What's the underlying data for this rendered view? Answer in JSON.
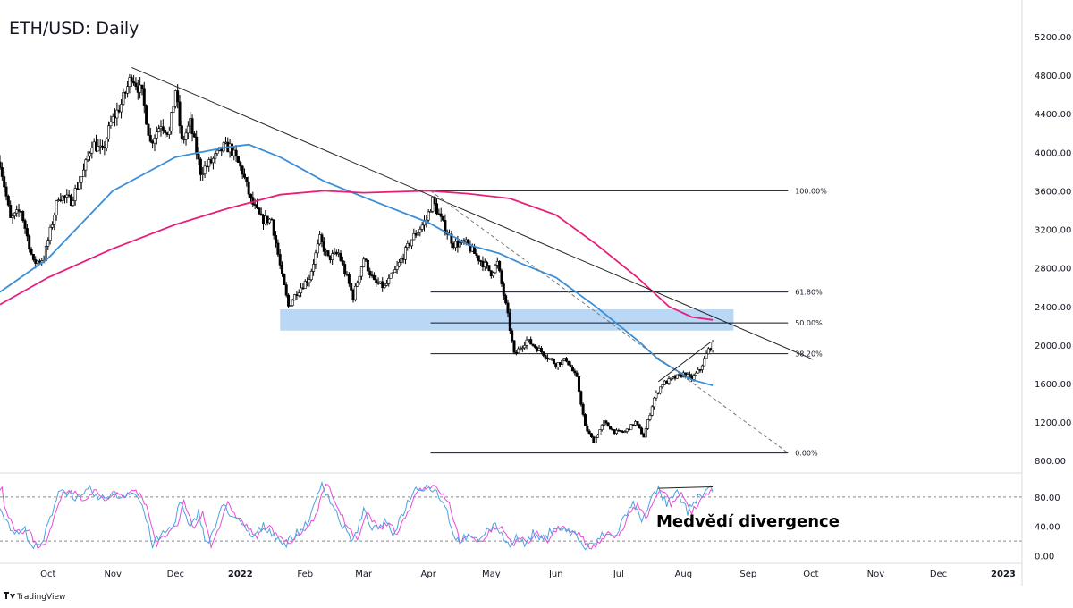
{
  "title": "ETH/USD: Daily",
  "branding": "TradingView",
  "colors": {
    "up": "#ffffff",
    "down": "#000000",
    "ma_fast": "#3a8fd8",
    "ma_slow": "#e91e7a",
    "zone": "#aed0f5",
    "rsi": "#4aa3e0",
    "rsi_signal": "#e84bd8"
  },
  "chart_data": [
    {
      "type": "candlestick",
      "title": "ETH/USD: Daily",
      "y_ticks": [
        "5200.00",
        "4800.00",
        "4400.00",
        "4000.00",
        "3600.00",
        "3200.00",
        "2800.00",
        "2400.00",
        "2000.00",
        "1600.00",
        "1200.00",
        "800.00"
      ],
      "ylim": [
        700,
        5450
      ],
      "x_ticks": [
        "Oct",
        "Nov",
        "Dec",
        "2022",
        "Feb",
        "Mar",
        "Apr",
        "May",
        "Jun",
        "Jul",
        "Aug",
        "Sep",
        "Oct",
        "Nov",
        "Dec",
        "2023"
      ],
      "x_range": [
        "2021-09-08",
        "2023-01-10"
      ],
      "close_path": [
        [
          "2021-09-08",
          3900
        ],
        [
          "2021-09-13",
          3300
        ],
        [
          "2021-09-18",
          3400
        ],
        [
          "2021-09-24",
          2850
        ],
        [
          "2021-09-29",
          2900
        ],
        [
          "2021-10-06",
          3550
        ],
        [
          "2021-10-12",
          3500
        ],
        [
          "2021-10-18",
          3800
        ],
        [
          "2021-10-22",
          4100
        ],
        [
          "2021-10-27",
          4000
        ],
        [
          "2021-10-31",
          4300
        ],
        [
          "2021-11-05",
          4500
        ],
        [
          "2021-11-10",
          4800
        ],
        [
          "2021-11-15",
          4600
        ],
        [
          "2021-11-19",
          4100
        ],
        [
          "2021-11-24",
          4300
        ],
        [
          "2021-11-28",
          4200
        ],
        [
          "2021-12-01",
          4650
        ],
        [
          "2021-12-04",
          4100
        ],
        [
          "2021-12-08",
          4300
        ],
        [
          "2021-12-13",
          3800
        ],
        [
          "2021-12-18",
          3900
        ],
        [
          "2021-12-24",
          4050
        ],
        [
          "2021-12-27",
          4050
        ],
        [
          "2022-01-02",
          3800
        ],
        [
          "2022-01-06",
          3500
        ],
        [
          "2022-01-11",
          3300
        ],
        [
          "2022-01-16",
          3300
        ],
        [
          "2022-01-21",
          2700
        ],
        [
          "2022-01-24",
          2400
        ],
        [
          "2022-01-28",
          2550
        ],
        [
          "2022-02-03",
          2700
        ],
        [
          "2022-02-08",
          3100
        ],
        [
          "2022-02-12",
          2900
        ],
        [
          "2022-02-17",
          2950
        ],
        [
          "2022-02-24",
          2500
        ],
        [
          "2022-03-01",
          2900
        ],
        [
          "2022-03-06",
          2650
        ],
        [
          "2022-03-11",
          2600
        ],
        [
          "2022-03-17",
          2800
        ],
        [
          "2022-03-24",
          3100
        ],
        [
          "2022-03-31",
          3300
        ],
        [
          "2022-04-03",
          3500
        ],
        [
          "2022-04-08",
          3250
        ],
        [
          "2022-04-13",
          3050
        ],
        [
          "2022-04-19",
          3050
        ],
        [
          "2022-04-25",
          2900
        ],
        [
          "2022-05-01",
          2750
        ],
        [
          "2022-05-04",
          2850
        ],
        [
          "2022-05-09",
          2300
        ],
        [
          "2022-05-12",
          1900
        ],
        [
          "2022-05-18",
          2050
        ],
        [
          "2022-05-24",
          1950
        ],
        [
          "2022-06-01",
          1800
        ],
        [
          "2022-06-06",
          1850
        ],
        [
          "2022-06-11",
          1650
        ],
        [
          "2022-06-15",
          1150
        ],
        [
          "2022-06-19",
          1000
        ],
        [
          "2022-06-24",
          1200
        ],
        [
          "2022-06-29",
          1100
        ],
        [
          "2022-07-04",
          1100
        ],
        [
          "2022-07-09",
          1200
        ],
        [
          "2022-07-13",
          1050
        ],
        [
          "2022-07-18",
          1450
        ],
        [
          "2022-07-22",
          1600
        ],
        [
          "2022-07-27",
          1650
        ],
        [
          "2022-08-01",
          1700
        ],
        [
          "2022-08-05",
          1650
        ],
        [
          "2022-08-09",
          1750
        ],
        [
          "2022-08-13",
          1950
        ],
        [
          "2022-08-15",
          2000
        ]
      ],
      "moving_averages": [
        {
          "points": [
            [
              "2021-09-08",
              2550
            ],
            [
              "2021-10-01",
              2900
            ],
            [
              "2021-11-01",
              3600
            ],
            [
              "2021-12-01",
              3950
            ],
            [
              "2021-12-25",
              4050
            ],
            [
              "2022-01-05",
              4080
            ],
            [
              "2022-01-20",
              3950
            ],
            [
              "2022-02-10",
              3700
            ],
            [
              "2022-03-05",
              3500
            ],
            [
              "2022-04-01",
              3270
            ],
            [
              "2022-04-20",
              3040
            ],
            [
              "2022-05-05",
              2950
            ],
            [
              "2022-05-15",
              2850
            ],
            [
              "2022-06-01",
              2700
            ],
            [
              "2022-06-20",
              2400
            ],
            [
              "2022-07-10",
              2050
            ],
            [
              "2022-07-20",
              1850
            ],
            [
              "2022-08-05",
              1640
            ],
            [
              "2022-08-15",
              1580
            ]
          ]
        },
        {
          "points": [
            [
              "2021-09-08",
              2420
            ],
            [
              "2021-10-01",
              2700
            ],
            [
              "2021-11-01",
              3000
            ],
            [
              "2021-12-01",
              3250
            ],
            [
              "2021-12-25",
              3410
            ],
            [
              "2022-01-20",
              3560
            ],
            [
              "2022-02-10",
              3600
            ],
            [
              "2022-03-01",
              3580
            ],
            [
              "2022-04-01",
              3600
            ],
            [
              "2022-04-20",
              3570
            ],
            [
              "2022-05-10",
              3520
            ],
            [
              "2022-06-01",
              3350
            ],
            [
              "2022-06-20",
              3050
            ],
            [
              "2022-07-10",
              2700
            ],
            [
              "2022-07-25",
              2400
            ],
            [
              "2022-08-05",
              2290
            ],
            [
              "2022-08-15",
              2260
            ]
          ]
        }
      ],
      "trendlines": [
        {
          "from": [
            "2021-11-10",
            4880
          ],
          "to": [
            "2022-10-02",
            1850
          ],
          "style": "solid"
        },
        {
          "from": [
            "2022-04-02",
            3600
          ],
          "to": [
            "2022-09-20",
            880
          ],
          "style": "dashed"
        },
        {
          "from": [
            "2022-07-20",
            1620
          ],
          "to": [
            "2022-08-14",
            2030
          ],
          "style": "solid"
        }
      ],
      "zone": {
        "from": "2022-01-20",
        "to": "2022-08-25",
        "y_range": [
          2150,
          2370
        ]
      },
      "fibonacci": {
        "from": "2022-04-02",
        "to": "2022-09-20",
        "levels": [
          {
            "label": "100.00%",
            "value": 3600
          },
          {
            "label": "61.80%",
            "value": 2550
          },
          {
            "label": "50.00%",
            "value": 2230
          },
          {
            "label": "38.20%",
            "value": 1910
          },
          {
            "label": "0.00%",
            "value": 880
          }
        ]
      }
    },
    {
      "type": "line",
      "indicator": "RSI",
      "y_ticks": [
        "80.00",
        "40.00",
        "0.00"
      ],
      "ylim": [
        -8,
        108
      ],
      "bands": [
        80,
        20
      ],
      "rsi": [
        [
          "2021-09-08",
          70
        ],
        [
          "2021-09-12",
          40
        ],
        [
          "2021-09-16",
          30
        ],
        [
          "2021-09-20",
          35
        ],
        [
          "2021-09-24",
          10
        ],
        [
          "2021-09-28",
          15
        ],
        [
          "2021-10-03",
          60
        ],
        [
          "2021-10-06",
          90
        ],
        [
          "2021-10-12",
          85
        ],
        [
          "2021-10-16",
          75
        ],
        [
          "2021-10-21",
          90
        ],
        [
          "2021-10-26",
          75
        ],
        [
          "2021-10-31",
          85
        ],
        [
          "2021-11-05",
          80
        ],
        [
          "2021-11-10",
          90
        ],
        [
          "2021-11-15",
          70
        ],
        [
          "2021-11-20",
          15
        ],
        [
          "2021-11-25",
          30
        ],
        [
          "2021-11-30",
          40
        ],
        [
          "2021-12-03",
          75
        ],
        [
          "2021-12-08",
          35
        ],
        [
          "2021-12-12",
          60
        ],
        [
          "2021-12-16",
          15
        ],
        [
          "2021-12-20",
          40
        ],
        [
          "2021-12-24",
          70
        ],
        [
          "2021-12-28",
          55
        ],
        [
          "2022-01-02",
          40
        ],
        [
          "2022-01-07",
          25
        ],
        [
          "2022-01-12",
          40
        ],
        [
          "2022-01-17",
          30
        ],
        [
          "2022-01-22",
          15
        ],
        [
          "2022-01-26",
          25
        ],
        [
          "2022-01-30",
          35
        ],
        [
          "2022-02-04",
          55
        ],
        [
          "2022-02-09",
          100
        ],
        [
          "2022-02-14",
          70
        ],
        [
          "2022-02-19",
          40
        ],
        [
          "2022-02-24",
          20
        ],
        [
          "2022-03-01",
          60
        ],
        [
          "2022-03-06",
          35
        ],
        [
          "2022-03-11",
          45
        ],
        [
          "2022-03-15",
          30
        ],
        [
          "2022-03-20",
          60
        ],
        [
          "2022-03-25",
          90
        ],
        [
          "2022-03-31",
          95
        ],
        [
          "2022-04-04",
          90
        ],
        [
          "2022-04-09",
          70
        ],
        [
          "2022-04-14",
          20
        ],
        [
          "2022-04-19",
          25
        ],
        [
          "2022-04-24",
          20
        ],
        [
          "2022-04-29",
          35
        ],
        [
          "2022-05-04",
          40
        ],
        [
          "2022-05-09",
          15
        ],
        [
          "2022-05-13",
          25
        ],
        [
          "2022-05-17",
          15
        ],
        [
          "2022-05-21",
          30
        ],
        [
          "2022-05-26",
          20
        ],
        [
          "2022-05-31",
          40
        ],
        [
          "2022-06-05",
          35
        ],
        [
          "2022-06-10",
          30
        ],
        [
          "2022-06-15",
          10
        ],
        [
          "2022-06-19",
          15
        ],
        [
          "2022-06-24",
          30
        ],
        [
          "2022-06-29",
          25
        ],
        [
          "2022-07-04",
          55
        ],
        [
          "2022-07-08",
          70
        ],
        [
          "2022-07-12",
          50
        ],
        [
          "2022-07-16",
          75
        ],
        [
          "2022-07-20",
          90
        ],
        [
          "2022-07-24",
          70
        ],
        [
          "2022-07-29",
          85
        ],
        [
          "2022-08-03",
          60
        ],
        [
          "2022-08-08",
          80
        ],
        [
          "2022-08-12",
          88
        ],
        [
          "2022-08-15",
          90
        ]
      ],
      "divergence_line": {
        "from": [
          "2022-07-20",
          92
        ],
        "to": [
          "2022-08-15",
          94
        ]
      },
      "annotation": "Medvědí divergence"
    }
  ]
}
